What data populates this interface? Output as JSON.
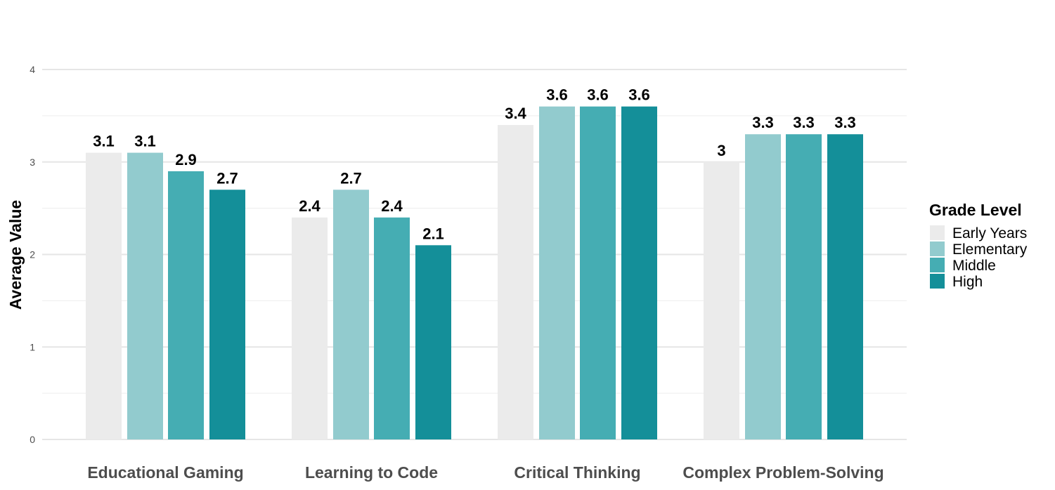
{
  "chart_data": {
    "type": "bar",
    "title": "",
    "xlabel": "",
    "ylabel": "Average Value",
    "ylim": [
      0,
      4
    ],
    "yticks": [
      "0",
      "1",
      "2",
      "3",
      "4"
    ],
    "grid": true,
    "categories": [
      "Educational Gaming",
      "Learning to Code",
      "Critical Thinking",
      "Complex Problem-Solving"
    ],
    "legend": {
      "title": "Grade Level",
      "position": "right"
    },
    "series": [
      {
        "name": "Early Years",
        "color": "#EBEBEB",
        "values": [
          3.1,
          2.4,
          3.4,
          3
        ],
        "labels": [
          "3.1",
          "2.4",
          "3.4",
          "3"
        ]
      },
      {
        "name": "Elementary",
        "color": "#92CBCE",
        "values": [
          3.1,
          2.7,
          3.6,
          3.3
        ],
        "labels": [
          "3.1",
          "2.7",
          "3.6",
          "3.3"
        ]
      },
      {
        "name": "Middle",
        "color": "#45ADB3",
        "values": [
          2.9,
          2.4,
          3.6,
          3.3
        ],
        "labels": [
          "2.9",
          "2.4",
          "3.6",
          "3.3"
        ]
      },
      {
        "name": "High",
        "color": "#148F99",
        "values": [
          2.7,
          2.1,
          3.6,
          3.3
        ],
        "labels": [
          "2.7",
          "2.1",
          "3.6",
          "3.3"
        ]
      }
    ]
  }
}
